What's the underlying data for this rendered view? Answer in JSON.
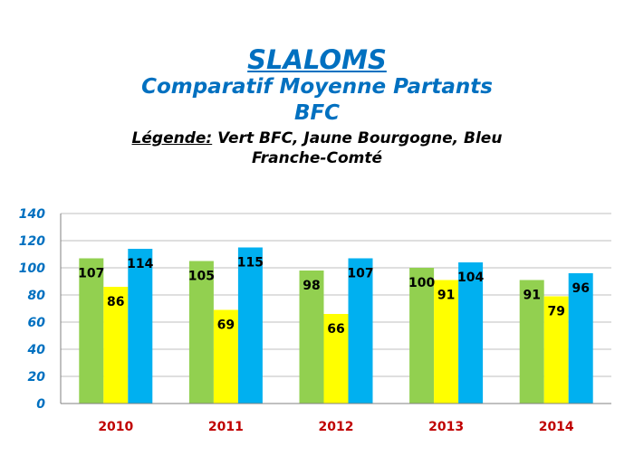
{
  "title_main": "SLALOMS",
  "title_sub_1": "Comparatif  Moyenne  Partants",
  "title_sub_2": "BFC",
  "legend_key": "Légende:",
  "legend_text_1": " Vert BFC, Jaune Bourgogne, Bleu",
  "legend_text_2": "Franche-Comté",
  "chart_data": {
    "type": "bar",
    "categories": [
      "2010",
      "2011",
      "2012",
      "2013",
      "2014"
    ],
    "series": [
      {
        "values": [
          107,
          105,
          98,
          100,
          91
        ],
        "color": "#92d050"
      },
      {
        "values": [
          86,
          69,
          66,
          91,
          79
        ],
        "color": "#ffff00"
      },
      {
        "values": [
          114,
          115,
          107,
          104,
          96
        ],
        "color": "#00b0f0"
      }
    ],
    "y_ticks": [
      "0",
      "20",
      "40",
      "60",
      "80",
      "100",
      "120",
      "140"
    ],
    "ylim": [
      0,
      140
    ],
    "grid": true,
    "legend": "none"
  }
}
